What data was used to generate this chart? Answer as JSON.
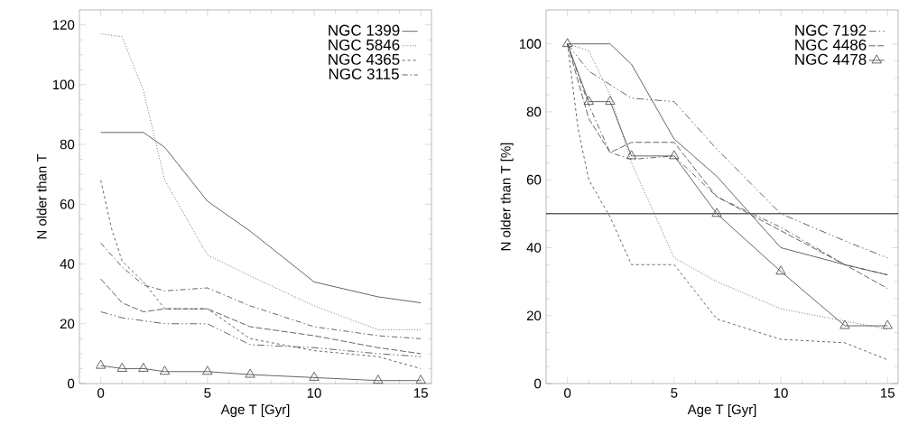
{
  "chart_data": [
    {
      "type": "line",
      "xlabel": "Age T [Gyr]",
      "ylabel": "N  older than T",
      "xlim": [
        -1,
        15.5
      ],
      "ylim": [
        0,
        125
      ],
      "xticks": [
        0,
        5,
        10,
        15
      ],
      "yticks": [
        0,
        20,
        40,
        60,
        80,
        100,
        120
      ],
      "legend": "top right",
      "grid": false,
      "series": [
        {
          "name": "NGC 1399",
          "color": "#555555",
          "line_style": "solid",
          "marker": "none",
          "x": [
            0,
            2,
            3,
            5,
            7,
            10,
            13,
            15
          ],
          "values": [
            84,
            84,
            79,
            61,
            51,
            34,
            29,
            27
          ]
        },
        {
          "name": "NGC 5846",
          "color": "#555555",
          "line_style": "dotted",
          "marker": "none",
          "x": [
            0,
            1,
            2,
            3,
            5,
            7,
            10,
            13,
            15
          ],
          "values": [
            117,
            116,
            98,
            68,
            43,
            36,
            26,
            18,
            18
          ]
        },
        {
          "name": "NGC 4365",
          "color": "#555555",
          "line_style": "dashed",
          "marker": "none",
          "x": [
            0,
            0.5,
            1,
            2,
            3,
            5,
            7,
            10,
            13,
            15
          ],
          "values": [
            68,
            52,
            41,
            34,
            25,
            25,
            15,
            11,
            9,
            5
          ]
        },
        {
          "name": "NGC 3115",
          "color": "#555555",
          "line_style": "dashdot",
          "marker": "none",
          "x": [
            0,
            1,
            2,
            3,
            5,
            7,
            10,
            13,
            15
          ],
          "values": [
            47,
            39,
            33,
            31,
            32,
            26,
            19,
            16,
            15
          ]
        },
        {
          "color": "#555555",
          "line_style": "longdash",
          "marker": "none",
          "x": [
            0,
            1,
            2,
            3,
            5,
            7,
            10,
            13,
            15
          ],
          "values": [
            35,
            27,
            24,
            25,
            25,
            19,
            16,
            12,
            10
          ]
        },
        {
          "color": "#555555",
          "line_style": "dashdotdot",
          "marker": "none",
          "x": [
            0,
            1,
            2,
            3,
            5,
            7,
            10,
            13,
            15
          ],
          "values": [
            24,
            22,
            21,
            20,
            20,
            13,
            12,
            10,
            9
          ]
        },
        {
          "color": "#555555",
          "line_style": "solid",
          "marker": "triangle",
          "x": [
            0,
            1,
            2,
            3,
            5,
            7,
            10,
            13,
            15
          ],
          "values": [
            6,
            5,
            5,
            4,
            4,
            3,
            2,
            1,
            1
          ]
        }
      ]
    },
    {
      "type": "line",
      "xlabel": "Age T [Gyr]",
      "ylabel": "N  older than T [%]",
      "xlim": [
        -1,
        15.5
      ],
      "ylim": [
        0,
        110
      ],
      "xticks": [
        0,
        5,
        10,
        15
      ],
      "yticks": [
        0,
        20,
        40,
        60,
        80,
        100
      ],
      "legend": "top right",
      "grid": false,
      "ref_lines": [
        {
          "axis": "y",
          "value": 50,
          "color": "#000000"
        }
      ],
      "series": [
        {
          "color": "#555555",
          "line_style": "solid",
          "marker": "none",
          "x": [
            0,
            2,
            3,
            5,
            7,
            10,
            13,
            15
          ],
          "values": [
            100,
            100,
            94,
            72,
            61,
            40,
            35,
            32
          ]
        },
        {
          "color": "#555555",
          "line_style": "dotted",
          "marker": "none",
          "x": [
            0,
            1,
            2,
            3,
            5,
            7,
            10,
            15
          ],
          "values": [
            100,
            98,
            85,
            65,
            37,
            30,
            22,
            16
          ]
        },
        {
          "color": "#555555",
          "line_style": "dashed",
          "marker": "none",
          "x": [
            0,
            0.5,
            1,
            2,
            3,
            5,
            7,
            10,
            13,
            15
          ],
          "values": [
            100,
            75,
            60,
            49,
            35,
            35,
            19,
            13,
            12,
            7
          ]
        },
        {
          "color": "#555555",
          "line_style": "dashdot",
          "marker": "none",
          "x": [
            0,
            1,
            2,
            3,
            5,
            7,
            10,
            13,
            15
          ],
          "values": [
            100,
            82,
            68,
            66,
            67,
            55,
            46,
            35,
            32
          ]
        },
        {
          "name": "NGC 7192",
          "color": "#555555",
          "line_style": "dashdotdot",
          "marker": "none",
          "x": [
            0,
            1,
            2,
            3,
            5,
            7,
            10,
            13,
            15
          ],
          "values": [
            100,
            92,
            88,
            84,
            83,
            69,
            50,
            42,
            37
          ]
        },
        {
          "name": "NGC 4486",
          "color": "#555555",
          "line_style": "longdash",
          "marker": "none",
          "x": [
            0,
            1,
            2,
            3,
            5,
            7,
            10,
            13,
            15
          ],
          "values": [
            100,
            78,
            68,
            71,
            71,
            55,
            45,
            35,
            28
          ]
        },
        {
          "name": "NGC 4478",
          "color": "#555555",
          "line_style": "solid",
          "marker": "triangle",
          "x": [
            0,
            1,
            2,
            3,
            5,
            7,
            10,
            13,
            15
          ],
          "values": [
            100,
            83,
            83,
            67,
            67,
            50,
            33,
            17,
            17
          ]
        }
      ]
    }
  ]
}
